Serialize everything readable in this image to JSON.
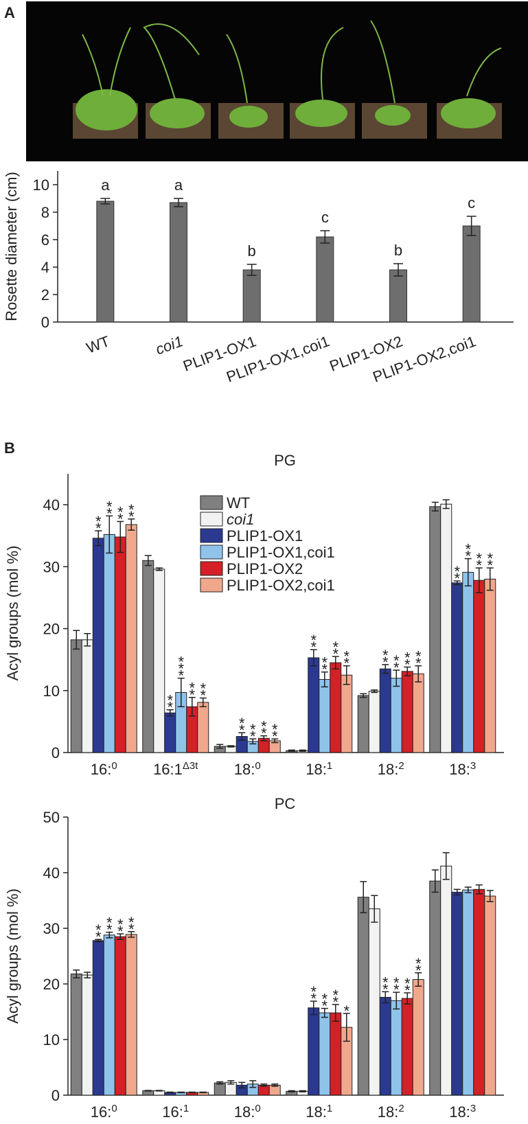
{
  "panels": [
    "A",
    "B"
  ],
  "chart_data": [
    {
      "type": "bar",
      "ylabel": "Rosette diameter (cm)",
      "categories": [
        "WT",
        "coi1",
        "PLIP1-OX1",
        "PLIP1-OX1,coi1",
        "PLIP1-OX2",
        "PLIP1-OX2,coi1"
      ],
      "values": [
        8.8,
        8.7,
        3.8,
        6.2,
        3.8,
        7.0
      ],
      "errors": [
        0.2,
        0.3,
        0.4,
        0.45,
        0.45,
        0.7
      ],
      "annotations": [
        "a",
        "a",
        "b",
        "c",
        "b",
        "c"
      ],
      "color": "#6e6e6e",
      "ylim": [
        0,
        11
      ],
      "yticks": [
        0,
        2,
        4,
        6,
        8,
        10
      ]
    },
    {
      "type": "grouped_bar",
      "title": "PG",
      "ylabel": "Acyl groups (mol %)",
      "categories": [
        "16:0",
        "16:1Δ3t",
        "18:0",
        "18:1",
        "18:2",
        "18:3"
      ],
      "ylim": [
        0,
        45
      ],
      "yticks": [
        0,
        10,
        20,
        30,
        40
      ],
      "legend": true,
      "series": [
        {
          "name": "WT",
          "color": "#808080",
          "values": [
            18.2,
            31.0,
            1.0,
            0.3,
            9.2,
            39.7
          ],
          "errors": [
            1.5,
            0.8,
            0.3,
            0.1,
            0.3,
            0.7
          ]
        },
        {
          "name": "coi1",
          "color": "#f2f2f2",
          "values": [
            18.2,
            29.6,
            1.0,
            0.3,
            9.9,
            40.1
          ],
          "errors": [
            1.0,
            0.2,
            0.1,
            0.1,
            0.2,
            0.7
          ]
        },
        {
          "name": "PLIP1-OX1",
          "color": "#2b3990",
          "values": [
            34.6,
            6.4,
            2.6,
            15.3,
            13.5,
            27.4
          ],
          "errors": [
            1.2,
            0.5,
            0.6,
            1.3,
            0.7,
            0.3
          ],
          "annotations": [
            "**",
            "**",
            "**",
            "**",
            "**",
            "**"
          ]
        },
        {
          "name": "PLIP1-OX1,coi1",
          "color": "#8fc3ea",
          "values": [
            35.2,
            9.7,
            1.8,
            11.8,
            12.0,
            29.1
          ],
          "errors": [
            3.0,
            2.3,
            0.4,
            1.2,
            1.3,
            2.2
          ],
          "annotations": [
            "**",
            "***",
            "**",
            "**",
            "**",
            "**"
          ]
        },
        {
          "name": "PLIP1-OX2",
          "color": "#d42027",
          "values": [
            34.8,
            7.4,
            2.3,
            14.5,
            13.1,
            27.8
          ],
          "errors": [
            2.5,
            1.5,
            0.4,
            1.0,
            0.7,
            2.0
          ],
          "annotations": [
            "**",
            "**",
            "**",
            "**",
            "**",
            "**"
          ]
        },
        {
          "name": "PLIP1-OX2,coi1",
          "color": "#f0a88c",
          "values": [
            36.8,
            8.1,
            1.9,
            12.5,
            12.7,
            28.0
          ],
          "errors": [
            0.9,
            0.7,
            0.3,
            1.5,
            1.3,
            1.8
          ],
          "annotations": [
            "**",
            "**",
            "**",
            "**",
            "**",
            "**"
          ]
        }
      ]
    },
    {
      "type": "grouped_bar",
      "title": "PC",
      "ylabel": "Acyl groups (mol %)",
      "categories": [
        "16:0",
        "16:1",
        "18:0",
        "18:1",
        "18:2",
        "18:3"
      ],
      "ylim": [
        0,
        50
      ],
      "yticks": [
        0,
        10,
        20,
        30,
        40,
        50
      ],
      "series": [
        {
          "color": "#808080",
          "values": [
            21.8,
            0.8,
            2.2,
            0.7,
            35.6,
            38.5
          ],
          "errors": [
            0.7,
            0.05,
            0.2,
            0.1,
            2.8,
            2.0
          ]
        },
        {
          "color": "#f2f2f2",
          "values": [
            21.6,
            0.8,
            2.3,
            0.7,
            33.5,
            41.2
          ],
          "errors": [
            0.5,
            0.05,
            0.3,
            0.1,
            2.4,
            2.4
          ]
        },
        {
          "color": "#2b3990",
          "values": [
            27.8,
            0.5,
            1.8,
            15.7,
            17.6,
            36.5
          ],
          "errors": [
            0.2,
            0.05,
            0.5,
            1.2,
            1.0,
            0.5
          ],
          "annotations": [
            "**",
            null,
            null,
            "**",
            "**",
            null
          ]
        },
        {
          "color": "#8fc3ea",
          "values": [
            28.8,
            0.5,
            2.0,
            14.8,
            17.0,
            36.9
          ],
          "errors": [
            0.5,
            0.05,
            0.6,
            0.8,
            1.5,
            0.5
          ],
          "annotations": [
            "**",
            null,
            null,
            "**",
            "**",
            null
          ]
        },
        {
          "color": "#d42027",
          "values": [
            28.5,
            0.5,
            1.8,
            14.8,
            17.4,
            37.0
          ],
          "errors": [
            0.5,
            0.05,
            0.2,
            1.5,
            1.0,
            0.8
          ],
          "annotations": [
            "**",
            null,
            null,
            "**",
            "**",
            null
          ]
        },
        {
          "color": "#f0a88c",
          "values": [
            28.9,
            0.5,
            1.8,
            12.2,
            20.8,
            35.8
          ],
          "errors": [
            0.5,
            0.05,
            0.2,
            2.5,
            1.2,
            1.0
          ],
          "annotations": [
            "**",
            null,
            null,
            "*",
            "**",
            null
          ]
        }
      ]
    }
  ]
}
